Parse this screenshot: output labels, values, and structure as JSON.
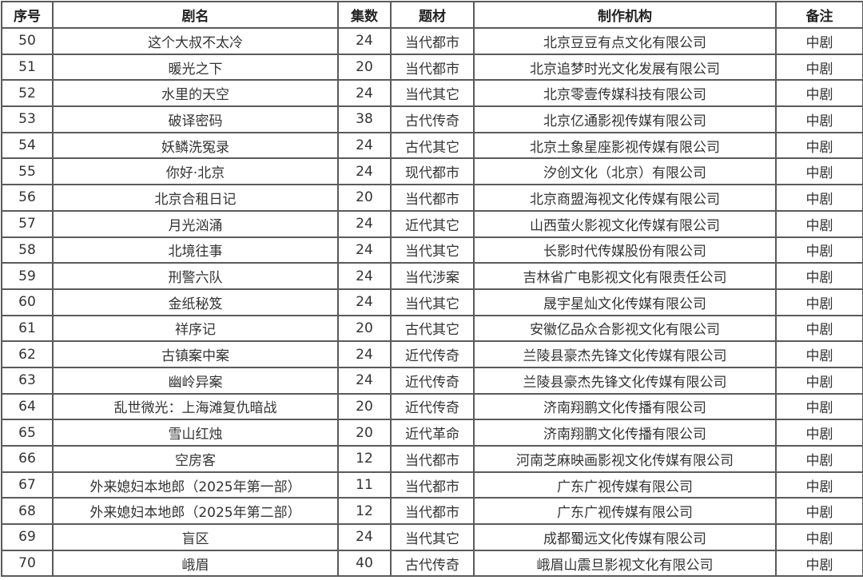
{
  "table": {
    "headers": [
      "序号",
      "剧名",
      "集数",
      "题材",
      "制作机构",
      "备注"
    ],
    "rows": [
      [
        "50",
        "这个大叔不太冷",
        "24",
        "当代都市",
        "北京豆豆有点文化有限公司",
        "中剧"
      ],
      [
        "51",
        "暖光之下",
        "20",
        "当代都市",
        "北京追梦时光文化发展有限公司",
        "中剧"
      ],
      [
        "52",
        "水里的天空",
        "24",
        "当代其它",
        "北京零壹传媒科技有限公司",
        "中剧"
      ],
      [
        "53",
        "破译密码",
        "38",
        "古代传奇",
        "北京亿通影视传媒有限公司",
        "中剧"
      ],
      [
        "54",
        "妖鳞洗冤录",
        "24",
        "古代其它",
        "北京土象星座影视传媒有限公司",
        "中剧"
      ],
      [
        "55",
        "你好·北京",
        "24",
        "现代都市",
        "汐创文化（北京）有限公司",
        "中剧"
      ],
      [
        "56",
        "北京合租日记",
        "20",
        "当代都市",
        "北京商盟海视文化传媒有限公司",
        "中剧"
      ],
      [
        "57",
        "月光汹涌",
        "24",
        "近代其它",
        "山西萤火影视文化传媒有限公司",
        "中剧"
      ],
      [
        "58",
        "北境往事",
        "24",
        "当代其它",
        "长影时代传媒股份有限公司",
        "中剧"
      ],
      [
        "59",
        "刑警六队",
        "24",
        "当代涉案",
        "吉林省广电影视文化有限责任公司",
        "中剧"
      ],
      [
        "60",
        "金纸秘笈",
        "24",
        "当代其它",
        "晟宇星灿文化传媒有限公司",
        "中剧"
      ],
      [
        "61",
        "祥序记",
        "20",
        "古代其它",
        "安徽亿品众合影视文化有限公司",
        "中剧"
      ],
      [
        "62",
        "古镇案中案",
        "24",
        "近代传奇",
        "兰陵县豪杰先锋文化传媒有限公司",
        "中剧"
      ],
      [
        "63",
        "幽岭异案",
        "24",
        "近代传奇",
        "兰陵县豪杰先锋文化传媒有限公司",
        "中剧"
      ],
      [
        "64",
        "乱世微光：上海滩复仇暗战",
        "20",
        "近代传奇",
        "济南翔鹏文化传播有限公司",
        "中剧"
      ],
      [
        "65",
        "雪山红烛",
        "20",
        "近代革命",
        "济南翔鹏文化传播有限公司",
        "中剧"
      ],
      [
        "66",
        "空房客",
        "12",
        "当代都市",
        "河南芝麻映画影视文化传媒有限公司",
        "中剧"
      ],
      [
        "67",
        "外来媳妇本地郎（2025年第一部）",
        "11",
        "当代都市",
        "广东广视传媒有限公司",
        "中剧"
      ],
      [
        "68",
        "外来媳妇本地郎（2025年第二部）",
        "12",
        "当代都市",
        "广东广视传媒有限公司",
        "中剧"
      ],
      [
        "69",
        "盲区",
        "24",
        "当代其它",
        "成都蜀远文化传媒有限公司",
        "中剧"
      ],
      [
        "70",
        "峨眉",
        "40",
        "古代传奇",
        "峨眉山震旦影视文化有限公司",
        "中剧"
      ]
    ]
  }
}
